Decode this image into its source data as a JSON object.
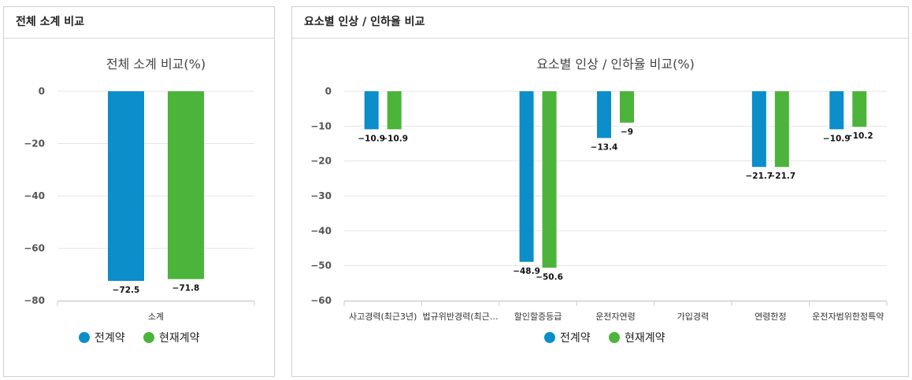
{
  "panels": [
    {
      "header": "전체 소계 비교"
    },
    {
      "header": "요소별 인상 / 인하율 비교"
    }
  ],
  "legend": [
    "전계약",
    "현재계약"
  ],
  "colors": {
    "series1": "#0b8ec9",
    "series2": "#4cb43a",
    "grid": "#e6e6e6",
    "tick": "#555555"
  },
  "chart_data": [
    {
      "type": "bar",
      "title": "전체 소계 비교(%)",
      "categories": [
        "소계"
      ],
      "series": [
        {
          "name": "전계약",
          "values": [
            -72.5
          ],
          "labels": [
            "−72.5"
          ]
        },
        {
          "name": "현재계약",
          "values": [
            -71.8
          ],
          "labels": [
            "−71.8"
          ]
        }
      ],
      "ylim": [
        -80,
        0
      ],
      "yticks": [
        0,
        -20,
        -40,
        -60,
        -80
      ],
      "ytick_labels": [
        "0",
        "−20",
        "−40",
        "−60",
        "−80"
      ],
      "grid": true,
      "legend_position": "bottom"
    },
    {
      "type": "bar",
      "title": "요소별 인상 / 인하율 비교(%)",
      "categories": [
        "사고경력(최근3년)",
        "법규위반경력(최근…",
        "할인할증등급",
        "운전자연령",
        "가입경력",
        "연령한정",
        "운전자범위한정특약"
      ],
      "series": [
        {
          "name": "전계약",
          "values": [
            -10.9,
            null,
            -48.9,
            -13.4,
            null,
            -21.7,
            -10.9
          ],
          "labels": [
            "−10.9",
            "",
            "−48.9",
            "−13.4",
            "",
            "−21.7",
            "−10.9"
          ]
        },
        {
          "name": "현재계약",
          "values": [
            -10.9,
            null,
            -50.6,
            -9,
            null,
            -21.7,
            -10.2
          ],
          "labels": [
            "−10.9",
            "",
            "−50.6",
            "−9",
            "",
            "−21.7",
            "−10.2"
          ]
        }
      ],
      "ylim": [
        -60,
        0
      ],
      "yticks": [
        0,
        -10,
        -20,
        -30,
        -40,
        -50,
        -60
      ],
      "ytick_labels": [
        "0",
        "−10",
        "−20",
        "−30",
        "−40",
        "−50",
        "−60"
      ],
      "grid": true,
      "legend_position": "bottom"
    }
  ]
}
